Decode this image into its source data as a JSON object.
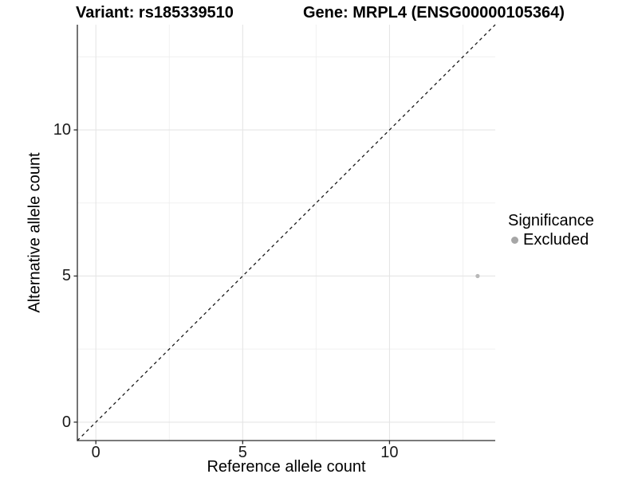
{
  "chart_data": {
    "type": "scatter",
    "title_left": "Variant: rs185339510",
    "title_right": "Gene: MRPL4 (ENSG00000105364)",
    "xlabel": "Reference allele count",
    "ylabel": "Alternative allele count",
    "xlim": [
      -0.63,
      13.6
    ],
    "ylim": [
      -0.63,
      13.6
    ],
    "x_ticks": [
      0,
      5,
      10
    ],
    "y_ticks": [
      0,
      5,
      10
    ],
    "minor_ticks": [
      2.5,
      7.5,
      12.5
    ],
    "grid": "major and minor, light gray, on white background",
    "points": [
      {
        "x": 13,
        "y": 5,
        "series": "Excluded"
      }
    ],
    "reference_line": {
      "type": "identity y=x",
      "style": "dashed",
      "span": "full axis range"
    },
    "legend": {
      "title": "Significance",
      "position": "right",
      "items": [
        {
          "label": "Excluded",
          "marker": "circle",
          "color": "#a6a6a6"
        }
      ]
    },
    "colors": {
      "point": "#b8b8b8",
      "legend_key": "#a6a6a6",
      "grid_major": "#e5e5e5",
      "grid_minor": "#f0f0f0",
      "axis": "#2a2a2a",
      "line": "#1a1a1a",
      "background": "#ffffff"
    }
  }
}
